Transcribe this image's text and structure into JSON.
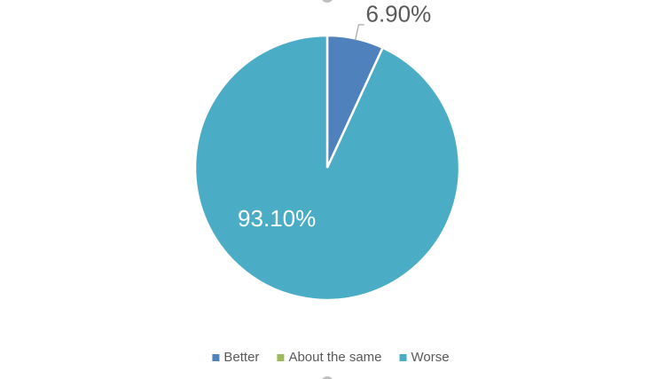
{
  "chart_data": {
    "type": "pie",
    "categories": [
      "Better",
      "About the same",
      "Worse"
    ],
    "values": [
      6.9,
      0,
      93.1
    ],
    "value_labels": [
      "6.90%",
      null,
      "93.10%"
    ],
    "colors": [
      "#4f81bd",
      "#9bbb59",
      "#4bacc6"
    ],
    "legend": "bottom"
  }
}
